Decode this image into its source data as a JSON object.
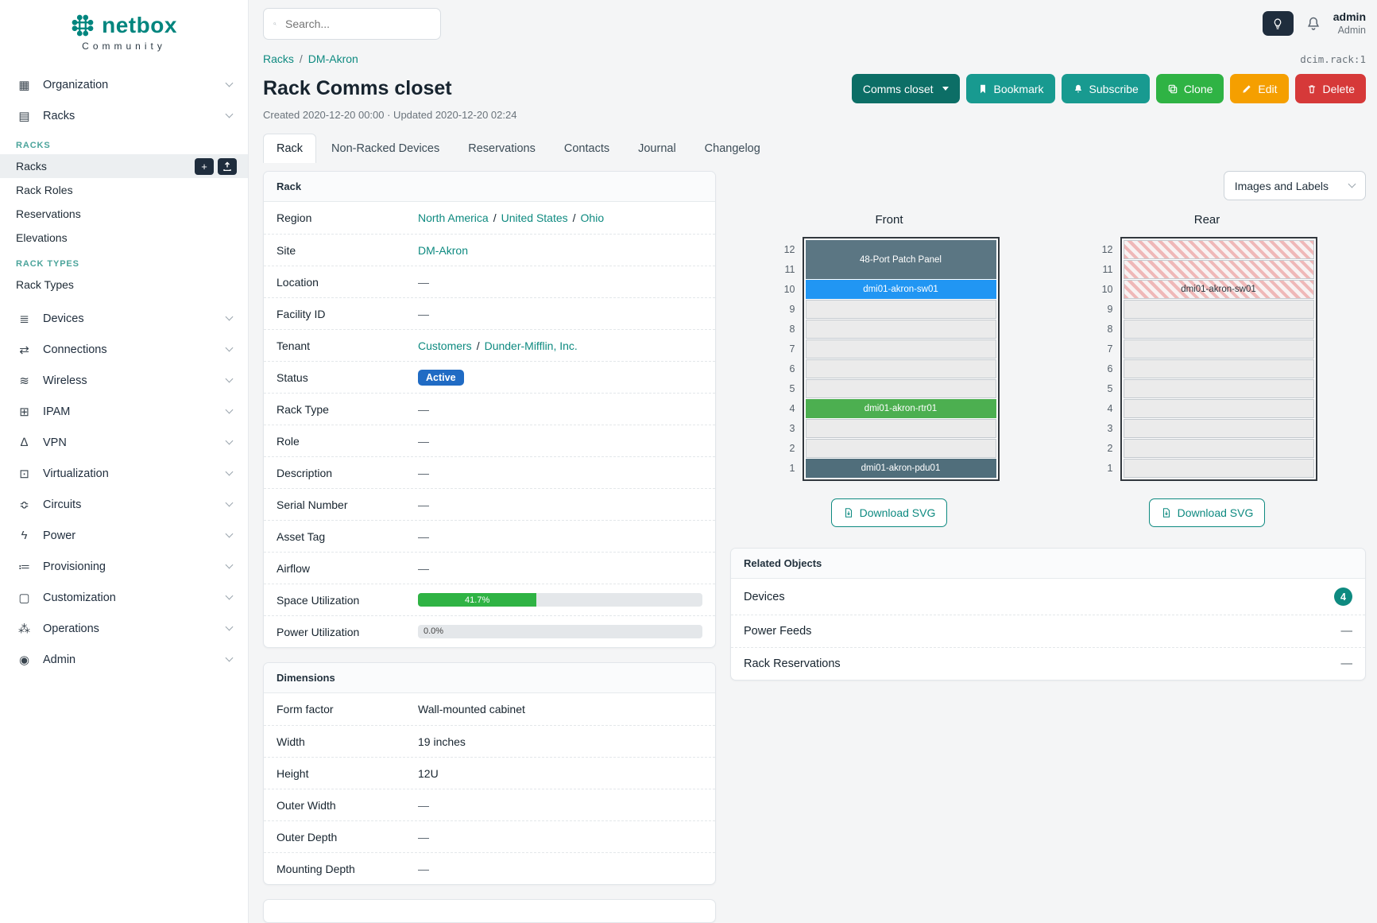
{
  "colors": {
    "brand_teal": "#00857e",
    "link_teal": "#0e8a80",
    "button_teal": "#189a90",
    "button_dark_teal": "#0c6e66",
    "clone_green": "#2fb344",
    "edit_orange": "#f59f00",
    "delete_red": "#d63939",
    "status_active_blue": "#206bc4",
    "utilization_green": "#2fb344",
    "device_blue": "#2196f3",
    "device_green": "#4caf50",
    "device_gray": "#5b7683"
  },
  "icons": {
    "plus": "+"
  },
  "brand": {
    "name": "netbox",
    "tagline": "Community"
  },
  "topbar": {
    "search_placeholder": "Search...",
    "user_name": "admin",
    "user_role": "Admin"
  },
  "sidebar": {
    "menu": [
      {
        "name": "organization-icon",
        "glyph": "▦",
        "label": "Organization"
      },
      {
        "name": "racks-icon",
        "glyph": "▤",
        "label": "Racks"
      },
      {
        "name": "devices-icon",
        "glyph": "≣",
        "label": "Devices"
      },
      {
        "name": "connections-icon",
        "glyph": "⇄",
        "label": "Connections"
      },
      {
        "name": "wireless-icon",
        "glyph": "≋",
        "label": "Wireless"
      },
      {
        "name": "ipam-icon",
        "glyph": "⊞",
        "label": "IPAM"
      },
      {
        "name": "vpn-icon",
        "glyph": "∆",
        "label": "VPN"
      },
      {
        "name": "virtualization-icon",
        "glyph": "⊡",
        "label": "Virtualization"
      },
      {
        "name": "circuits-icon",
        "glyph": "≎",
        "label": "Circuits"
      },
      {
        "name": "power-icon",
        "glyph": "ϟ",
        "label": "Power"
      },
      {
        "name": "provisioning-icon",
        "glyph": "≔",
        "label": "Provisioning"
      },
      {
        "name": "customization-icon",
        "glyph": "▢",
        "label": "Customization"
      },
      {
        "name": "operations-icon",
        "glyph": "⁂",
        "label": "Operations"
      },
      {
        "name": "admin-icon",
        "glyph": "◉",
        "label": "Admin"
      }
    ]
  },
  "racks_nav": {
    "group1_header": "RACKS",
    "group1_items": [
      "Racks",
      "Rack Roles",
      "Reservations",
      "Elevations"
    ],
    "group2_header": "RACK TYPES",
    "group2_items": [
      "Rack Types"
    ]
  },
  "breadcrumb": {
    "root": "Racks",
    "current": "DM-Akron",
    "object_ref": "dcim.rack:1"
  },
  "path_separator": "/",
  "page": {
    "title": "Rack Comms closet",
    "meta": "Created 2020-12-20 00:00 · Updated 2020-12-20 02:24"
  },
  "actions": {
    "rack_select_label": "Comms closet",
    "bookmark_label": "Bookmark",
    "subscribe_label": "Subscribe",
    "clone_label": "Clone",
    "edit_label": "Edit",
    "delete_label": "Delete"
  },
  "tabs": [
    "Rack",
    "Non-Racked Devices",
    "Reservations",
    "Contacts",
    "Journal",
    "Changelog"
  ],
  "rack_card": {
    "title": "Rack",
    "region_label": "Region",
    "region_path": [
      "North America",
      "United States",
      "Ohio"
    ],
    "site_label": "Site",
    "site_value": "DM-Akron",
    "location_label": "Location",
    "location_value": "—",
    "facility_label": "Facility ID",
    "facility_value": "—",
    "tenant_label": "Tenant",
    "tenant_path": [
      "Customers",
      "Dunder-Mifflin, Inc."
    ],
    "status_label": "Status",
    "status_value": "Active",
    "rack_type_label": "Rack Type",
    "rack_type_value": "—",
    "role_label": "Role",
    "role_value": "—",
    "description_label": "Description",
    "description_value": "—",
    "serial_label": "Serial Number",
    "serial_value": "—",
    "asset_label": "Asset Tag",
    "asset_value": "—",
    "airflow_label": "Airflow",
    "airflow_value": "—",
    "space_label": "Space Utilization",
    "space_text": "41.7%",
    "space_pct": 41.7,
    "power_label": "Power Utilization",
    "power_text": "0.0%",
    "power_pct": 0
  },
  "dimensions": {
    "title": "Dimensions",
    "rows": [
      {
        "label": "Form factor",
        "value": "Wall-mounted cabinet"
      },
      {
        "label": "Width",
        "value": "19 inches"
      },
      {
        "label": "Height",
        "value": "12U"
      },
      {
        "label": "Outer Width",
        "value": "—"
      },
      {
        "label": "Outer Depth",
        "value": "—"
      },
      {
        "label": "Mounting Depth",
        "value": "—"
      }
    ]
  },
  "elevation": {
    "view_select": "Images and Labels",
    "front_title": "Front",
    "rear_title": "Rear",
    "download_label": "Download SVG",
    "unit_numbers": [
      "12",
      "11",
      "10",
      "9",
      "8",
      "7",
      "6",
      "5",
      "4",
      "3",
      "2",
      "1"
    ],
    "front_devices": {
      "patch_panel": "48-Port Patch Panel",
      "sw": "dmi01-akron-sw01",
      "rtr": "dmi01-akron-rtr01",
      "pdu": "dmi01-akron-pdu01"
    },
    "rear_devices": {
      "sw": "dmi01-akron-sw01"
    }
  },
  "related": {
    "title": "Related Objects",
    "devices_label": "Devices",
    "devices_count": "4",
    "power_feeds_label": "Power Feeds",
    "power_feeds_value": "—",
    "reservations_label": "Rack Reservations",
    "reservations_value": "—"
  }
}
